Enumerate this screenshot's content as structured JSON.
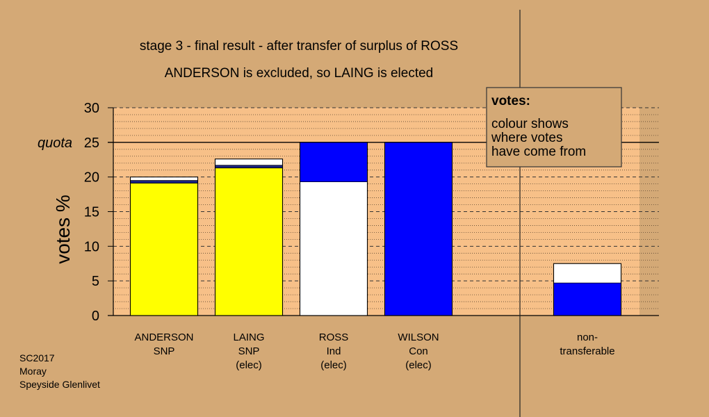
{
  "chart_data": {
    "type": "bar",
    "title": "stage 3 - final result - after transfer of surplus of ROSS",
    "subtitle": "ANDERSON is excluded, so LAING is elected",
    "ylabel": "votes %",
    "ylim": [
      0,
      30
    ],
    "yticks": [
      "0",
      "5",
      "10",
      "15",
      "20",
      "25",
      "30"
    ],
    "quota_label": "quota",
    "quota_value": 25,
    "grid": true,
    "colors": {
      "background": "#d4a976",
      "plot": "#f7c088",
      "yellow": "#ffff00",
      "blue": "#0000ff",
      "white": "#ffffff",
      "navy": "#1a237e"
    },
    "bars": [
      {
        "name": "ANDERSON",
        "label_lines": [
          "ANDERSON",
          "SNP"
        ],
        "segments": [
          {
            "color": "yellow",
            "from": 0,
            "to": 19.1
          },
          {
            "color": "navy",
            "from": 19.1,
            "to": 19.5
          },
          {
            "color": "white",
            "from": 19.5,
            "to": 20.0
          }
        ]
      },
      {
        "name": "LAING",
        "label_lines": [
          "LAING",
          "SNP",
          "(elec)"
        ],
        "segments": [
          {
            "color": "yellow",
            "from": 0,
            "to": 21.3
          },
          {
            "color": "navy",
            "from": 21.3,
            "to": 21.7
          },
          {
            "color": "white",
            "from": 21.7,
            "to": 22.6
          }
        ]
      },
      {
        "name": "ROSS",
        "label_lines": [
          "ROSS",
          "Ind",
          "(elec)"
        ],
        "segments": [
          {
            "color": "white",
            "from": 0,
            "to": 19.3
          },
          {
            "color": "blue",
            "from": 19.3,
            "to": 25.0
          }
        ]
      },
      {
        "name": "WILSON",
        "label_lines": [
          "WILSON",
          "Con",
          "(elec)"
        ],
        "segments": [
          {
            "color": "blue",
            "from": 0,
            "to": 25.0
          }
        ]
      },
      {
        "name": "non-transferable",
        "label_lines": [
          "non-",
          "transferable"
        ],
        "segments": [
          {
            "color": "blue",
            "from": 0,
            "to": 4.7
          },
          {
            "color": "white",
            "from": 4.7,
            "to": 7.5
          }
        ]
      }
    ],
    "legend": {
      "title": "votes:",
      "lines": [
        "colour shows",
        "where votes",
        "have come from"
      ]
    },
    "source_lines": [
      "SC2017",
      "Moray",
      "Speyside Glenlivet"
    ]
  }
}
